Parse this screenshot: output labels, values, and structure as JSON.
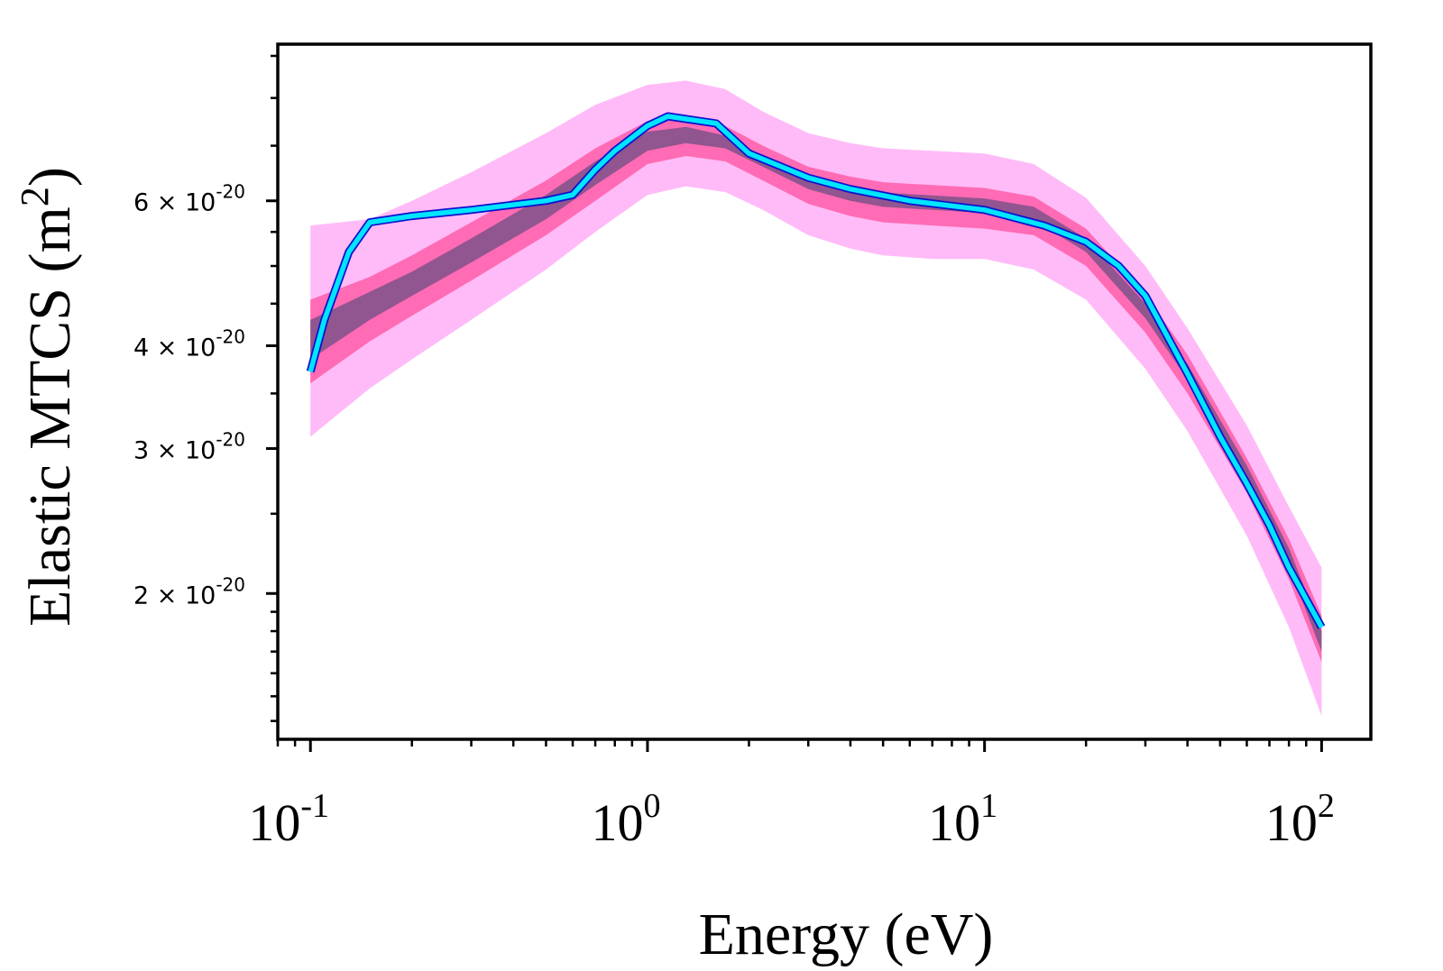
{
  "chart_data": {
    "type": "line",
    "xscale": "log",
    "yscale": "log",
    "xlabel": "Energy (eV)",
    "ylabel": "Elastic MTCS (m",
    "ylabel_sup": "2",
    "ylabel_close": ")",
    "xlim": [
      0.08,
      140
    ],
    "ylim": [
      1.33e-20,
      9.3e-20
    ],
    "x_ticks": [
      {
        "value": 0.1,
        "base": "10",
        "exp": "-1"
      },
      {
        "value": 1,
        "base": "10",
        "exp": "0"
      },
      {
        "value": 10,
        "base": "10",
        "exp": "1"
      },
      {
        "value": 100,
        "base": "10",
        "exp": "2"
      }
    ],
    "y_ticks": [
      {
        "value": 2e-20,
        "mant": "2",
        "times": "×",
        "base": "10",
        "exp": "-20"
      },
      {
        "value": 3e-20,
        "mant": "3",
        "times": "×",
        "base": "10",
        "exp": "-20"
      },
      {
        "value": 4e-20,
        "mant": "4",
        "times": "×",
        "base": "10",
        "exp": "-20"
      },
      {
        "value": 6e-20,
        "mant": "6",
        "times": "×",
        "base": "10",
        "exp": "-20"
      }
    ],
    "y_minor_ticks": [
      1.4e-20,
      1.5e-20,
      1.6e-20,
      1.7e-20,
      1.8e-20,
      1.9e-20,
      2.5e-20,
      3.5e-20,
      4.5e-20,
      5e-20,
      5.5e-20,
      7e-20,
      8e-20,
      9e-20
    ],
    "colors": {
      "outer_band": "#ffbbf8",
      "middle_band": "#ff6bb4",
      "inner_band": "#91558f",
      "line": "#00e5ff",
      "line_edge": "#1010cc"
    },
    "bands": [
      {
        "name": "outer",
        "x": [
          0.1,
          0.15,
          0.2,
          0.3,
          0.5,
          0.7,
          1.0,
          1.3,
          1.7,
          2.2,
          3,
          4,
          5,
          7,
          10,
          14,
          20,
          30,
          40,
          60,
          80,
          100
        ],
        "lower": [
          3.1e-20,
          3.55e-20,
          3.85e-20,
          4.3e-20,
          4.95e-20,
          5.5e-20,
          6.1e-20,
          6.25e-20,
          6.15e-20,
          5.85e-20,
          5.45e-20,
          5.25e-20,
          5.15e-20,
          5.1e-20,
          5.1e-20,
          4.95e-20,
          4.55e-20,
          3.75e-20,
          3.15e-20,
          2.35e-20,
          1.82e-20,
          1.42e-20
        ],
        "upper": [
          5.6e-20,
          5.7e-20,
          6e-20,
          6.5e-20,
          7.25e-20,
          7.85e-20,
          8.3e-20,
          8.4e-20,
          8.2e-20,
          7.7e-20,
          7.25e-20,
          7.05e-20,
          6.95e-20,
          6.9e-20,
          6.85e-20,
          6.65e-20,
          6.05e-20,
          5e-20,
          4.2e-20,
          3.2e-20,
          2.55e-20,
          2.15e-20
        ]
      },
      {
        "name": "middle",
        "x": [
          0.1,
          0.15,
          0.2,
          0.3,
          0.5,
          0.7,
          1.0,
          1.3,
          1.7,
          2.2,
          3,
          4,
          5,
          7,
          10,
          14,
          20,
          30,
          40,
          60,
          80,
          100
        ],
        "lower": [
          3.6e-20,
          4.05e-20,
          4.35e-20,
          4.8e-20,
          5.45e-20,
          6e-20,
          6.65e-20,
          6.8e-20,
          6.7e-20,
          6.35e-20,
          5.95e-20,
          5.75e-20,
          5.65e-20,
          5.6e-20,
          5.55e-20,
          5.45e-20,
          5e-20,
          4.15e-20,
          3.5e-20,
          2.65e-20,
          2.08e-20,
          1.65e-20
        ],
        "upper": [
          4.55e-20,
          4.85e-20,
          5.15e-20,
          5.65e-20,
          6.35e-20,
          6.95e-20,
          7.5e-20,
          7.6e-20,
          7.4e-20,
          7e-20,
          6.6e-20,
          6.42e-20,
          6.32e-20,
          6.27e-20,
          6.22e-20,
          6.07e-20,
          5.55e-20,
          4.62e-20,
          3.9e-20,
          2.92e-20,
          2.33e-20,
          1.88e-20
        ]
      },
      {
        "name": "inner",
        "x": [
          0.1,
          0.15,
          0.2,
          0.3,
          0.5,
          0.7,
          1.0,
          1.3,
          1.7,
          2.2,
          3,
          4,
          5,
          7,
          10,
          14,
          20,
          30,
          40,
          60,
          80,
          100
        ],
        "lower": [
          3.85e-20,
          4.3e-20,
          4.6e-20,
          5.05e-20,
          5.7e-20,
          6.27e-20,
          6.9e-20,
          7.05e-20,
          6.95e-20,
          6.6e-20,
          6.2e-20,
          6e-20,
          5.9e-20,
          5.85e-20,
          5.8e-20,
          5.68e-20,
          5.2e-20,
          4.32e-20,
          3.64e-20,
          2.74e-20,
          2.16e-20,
          1.7e-20
        ],
        "upper": [
          4.3e-20,
          4.65e-20,
          4.92e-20,
          5.4e-20,
          6.1e-20,
          6.7e-20,
          7.28e-20,
          7.38e-20,
          7.2e-20,
          6.8e-20,
          6.42e-20,
          6.24e-20,
          6.14e-20,
          6.09e-20,
          6.04e-20,
          5.9e-20,
          5.4e-20,
          4.5e-20,
          3.8e-20,
          2.86e-20,
          2.27e-20,
          1.8e-20
        ]
      }
    ],
    "series": [
      {
        "name": "reference",
        "x": [
          0.1,
          0.11,
          0.13,
          0.15,
          0.2,
          0.3,
          0.5,
          0.6,
          0.7,
          0.8,
          1.0,
          1.15,
          1.6,
          2.0,
          2.5,
          3,
          4,
          6,
          10,
          15,
          20,
          25,
          30,
          40,
          50,
          60,
          70,
          80,
          100
        ],
        "y": [
          3.72e-20,
          4.3e-20,
          5.2e-20,
          5.65e-20,
          5.75e-20,
          5.85e-20,
          6e-20,
          6.1e-20,
          6.55e-20,
          6.9e-20,
          7.4e-20,
          7.6e-20,
          7.45e-20,
          6.85e-20,
          6.6e-20,
          6.4e-20,
          6.2e-20,
          6e-20,
          5.85e-20,
          5.6e-20,
          5.35e-20,
          5e-20,
          4.6e-20,
          3.7e-20,
          3.1e-20,
          2.72e-20,
          2.42e-20,
          2.15e-20,
          1.82e-20
        ]
      }
    ]
  }
}
